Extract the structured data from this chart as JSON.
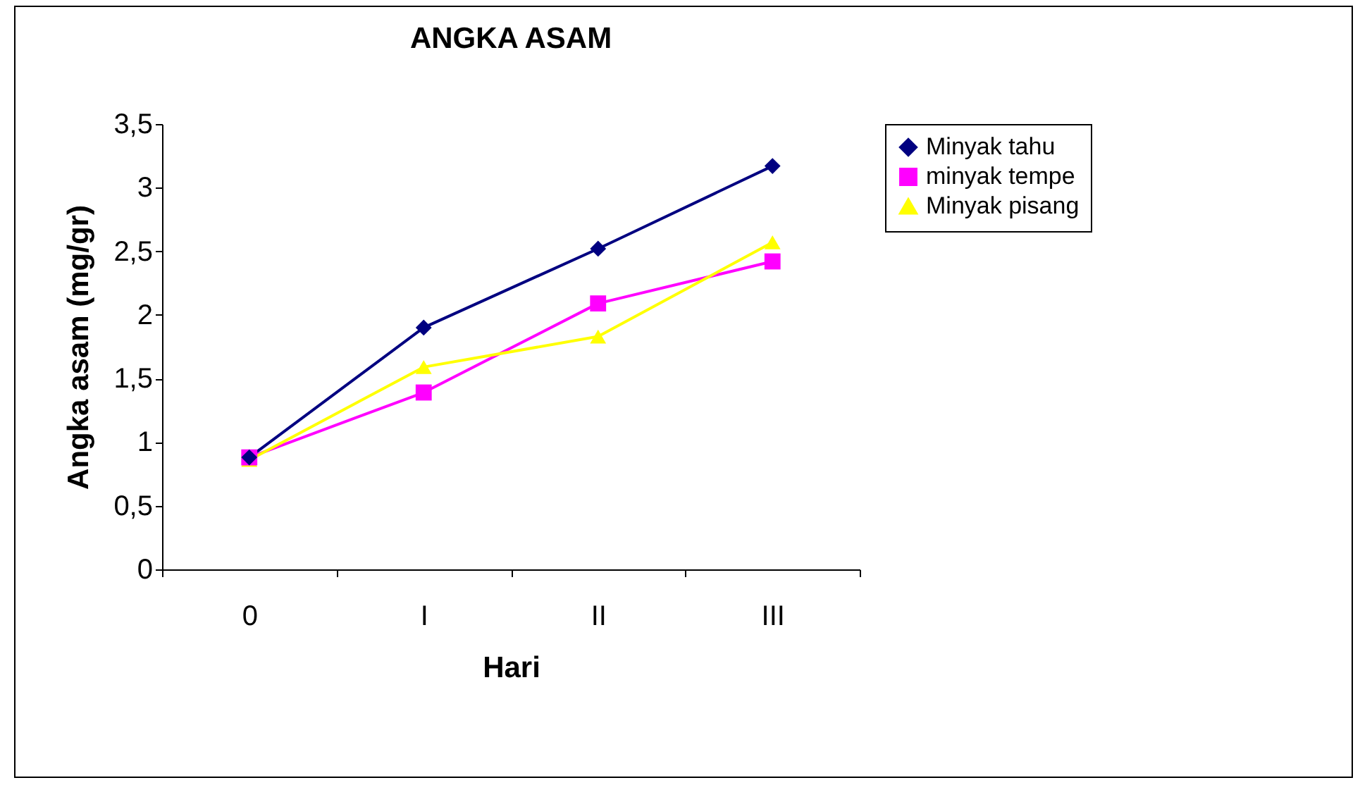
{
  "chart_data": {
    "type": "line",
    "title": "ANGKA ASAM",
    "xlabel": "Hari",
    "ylabel": "Angka asam (mg/gr)",
    "categories": [
      "0",
      "I",
      "II",
      "III"
    ],
    "series": [
      {
        "name": "Minyak tahu",
        "color": "#000080",
        "marker": "diamond",
        "values": [
          0.88,
          1.9,
          2.52,
          3.17
        ]
      },
      {
        "name": "minyak tempe",
        "color": "#ff00ff",
        "marker": "square",
        "values": [
          0.88,
          1.39,
          2.09,
          2.42
        ]
      },
      {
        "name": "Minyak pisang",
        "color": "#ffff00",
        "marker": "triangle",
        "values": [
          0.86,
          1.59,
          1.83,
          2.57
        ]
      }
    ],
    "ylim": [
      0,
      3.5
    ],
    "yticks": [
      0,
      {
        "value": 0.5,
        "label": "0,5"
      },
      1,
      {
        "value": 1.5,
        "label": "1,5"
      },
      2,
      {
        "value": 2.5,
        "label": "2,5"
      },
      3,
      {
        "value": 3.5,
        "label": "3,5"
      }
    ],
    "grid": false,
    "legend": "right"
  }
}
